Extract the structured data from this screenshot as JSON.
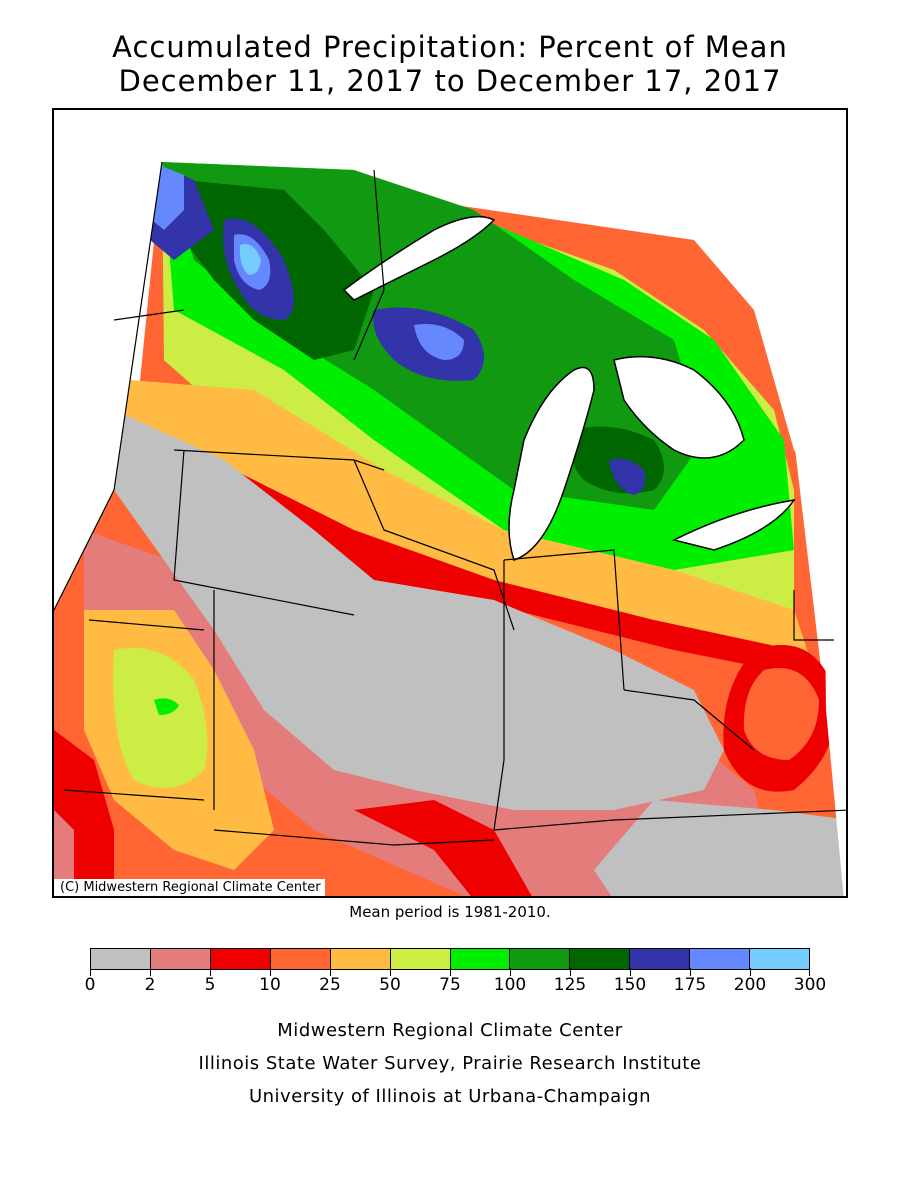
{
  "title": {
    "line1": "Accumulated Precipitation: Percent of Mean",
    "line2": "December 11, 2017 to December 17, 2017"
  },
  "map": {
    "credit": "(C) Midwestern Regional Climate Center",
    "mean_period": "Mean period is 1981-2010."
  },
  "legend": {
    "breaks": [
      "0",
      "2",
      "5",
      "10",
      "25",
      "50",
      "75",
      "100",
      "125",
      "150",
      "175",
      "200",
      "300"
    ],
    "colors": [
      "#c0c0c0",
      "#e47c7c",
      "#ee0000",
      "#ff6633",
      "#ffbb44",
      "#ccee44",
      "#00ee00",
      "#119911",
      "#006600",
      "#3333aa",
      "#6688ff",
      "#77ccff"
    ]
  },
  "footer": {
    "line1": "Midwestern Regional Climate Center",
    "line2": "Illinois State Water Survey, Prairie Research Institute",
    "line3": "University of Illinois at Urbana-Champaign"
  }
}
